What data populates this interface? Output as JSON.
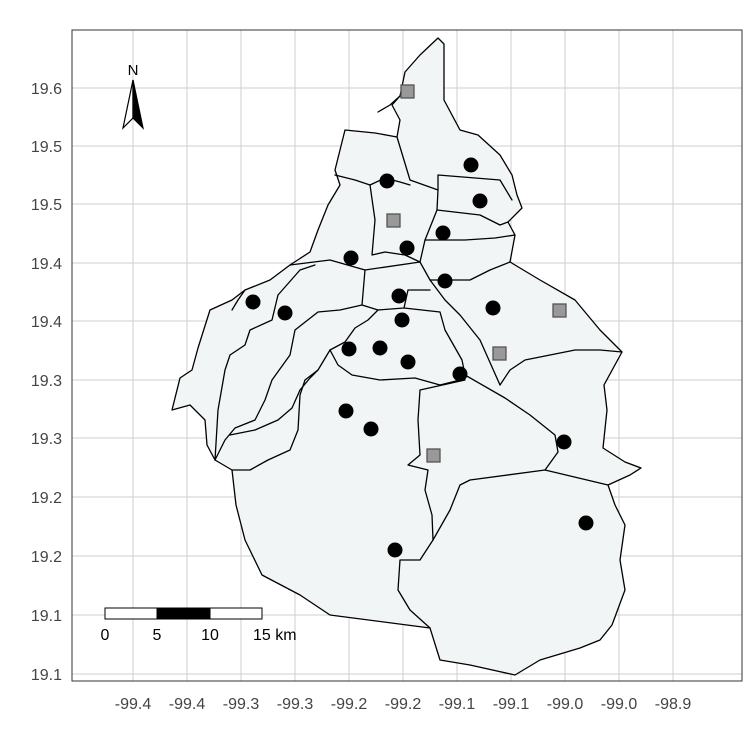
{
  "axes": {
    "y_tick_labels": [
      "19.6",
      "19.5",
      "19.5",
      "19.4",
      "19.4",
      "19.3",
      "19.3",
      "19.2",
      "19.2",
      "19.1",
      "19.1"
    ],
    "x_tick_labels": [
      "-99.4",
      "-99.4",
      "-99.3",
      "-99.3",
      "-99.2",
      "-99.2",
      "-99.1",
      "-99.1",
      "-99.0",
      "-99.0",
      "-98.9"
    ]
  },
  "north_arrow": {
    "label": "N",
    "icon": "north-arrow-icon"
  },
  "scale_bar": {
    "labels": [
      "0",
      "5",
      "10",
      "15 km"
    ],
    "segments": [
      "white",
      "black",
      "white"
    ]
  },
  "markers": {
    "circle": {
      "shape": "circle",
      "color": "#000000"
    },
    "square": {
      "shape": "square",
      "fill": "#999999",
      "stroke": "#555555"
    }
  },
  "colors": {
    "region_fill": "#f2f5f6",
    "border": "#000000",
    "grid": "#cfcfcf",
    "background": "#ffffff"
  }
}
